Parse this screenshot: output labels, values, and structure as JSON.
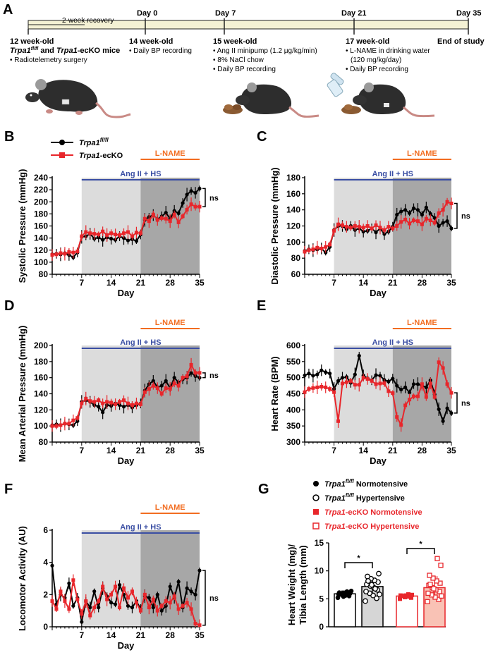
{
  "timeline": {
    "panel_label": "A",
    "recovery_label": "2-week recovery",
    "day_ticks": [
      "Day 0",
      "Day 7",
      "Day 21",
      "Day 35"
    ],
    "stages": [
      {
        "title": "12 week-old",
        "line2": "Trpa1fl/fl and Trpa1-ecKO mice",
        "bullets": [
          "Radiotelemetry surgery"
        ]
      },
      {
        "title": "14 week-old",
        "bullets": [
          "Daily BP recording"
        ]
      },
      {
        "title": "15 week-old",
        "bullets": [
          "Ang II minipump (1.2 μg/kg/min)",
          "8% NaCl chow",
          "Daily BP recording"
        ]
      },
      {
        "title": "17 week-old",
        "bullets": [
          "L-NAME in drinking water",
          "(120 mg/kg/day)",
          "Daily BP recording"
        ]
      },
      {
        "title": "End of study",
        "bullets": []
      }
    ],
    "colors": {
      "bar": "#f4f1d4",
      "mouse": "#2d2d2d",
      "tail": "#c98a85"
    }
  },
  "legend": {
    "flfl": "Trpa1fl/fl",
    "ecko": "Trpa1-ecKO"
  },
  "colors": {
    "flfl": "#000000",
    "ecko": "#e8262b",
    "angii": "#3a4ea3",
    "lname": "#f26d21",
    "bg_light": "#dcdcdc",
    "bg_dark": "#a7a7a7"
  },
  "treatments": {
    "angii": "Ang II + HS",
    "lname": "L-NAME",
    "ns": "ns",
    "star": "*"
  },
  "chart_data": [
    {
      "id": "B",
      "panel_label": "B",
      "type": "line",
      "ylabel": "Systolic Pressure (mmHg)",
      "xlabel": "Day",
      "ylim": [
        80,
        240
      ],
      "yticks": [
        80,
        100,
        120,
        140,
        160,
        180,
        200,
        220,
        240
      ],
      "xticks": [
        7,
        14,
        21,
        28,
        35
      ],
      "xlim": [
        0,
        35
      ],
      "series": [
        {
          "name": "Trpa1fl/fl",
          "x": [
            0,
            1,
            2,
            3,
            4,
            5,
            6,
            7,
            8,
            9,
            10,
            11,
            12,
            13,
            14,
            15,
            16,
            17,
            18,
            19,
            20,
            21,
            22,
            23,
            24,
            25,
            26,
            27,
            28,
            29,
            30,
            31,
            32,
            33,
            34,
            35
          ],
          "y": [
            113,
            114,
            113,
            115,
            112,
            108,
            116,
            142,
            143,
            147,
            139,
            141,
            137,
            141,
            139,
            137,
            143,
            140,
            136,
            138,
            135,
            146,
            170,
            175,
            178,
            171,
            176,
            182,
            172,
            185,
            181,
            198,
            212,
            218,
            215,
            222
          ]
        },
        {
          "name": "Trpa1-ecKO",
          "x": [
            0,
            1,
            2,
            3,
            4,
            5,
            6,
            7,
            8,
            9,
            10,
            11,
            12,
            13,
            14,
            15,
            16,
            17,
            18,
            19,
            20,
            21,
            22,
            23,
            24,
            25,
            26,
            27,
            28,
            29,
            30,
            31,
            32,
            33,
            34,
            35
          ],
          "y": [
            112,
            113,
            115,
            114,
            117,
            116,
            118,
            143,
            150,
            148,
            147,
            146,
            151,
            145,
            148,
            146,
            145,
            148,
            150,
            143,
            149,
            148,
            172,
            168,
            179,
            170,
            173,
            172,
            168,
            179,
            166,
            176,
            187,
            196,
            192,
            192
          ]
        }
      ]
    },
    {
      "id": "C",
      "panel_label": "C",
      "type": "line",
      "ylabel": "Diastolic Pressure (mmHg)",
      "xlabel": "Day",
      "ylim": [
        60,
        180
      ],
      "yticks": [
        60,
        80,
        100,
        120,
        140,
        160,
        180
      ],
      "xticks": [
        7,
        14,
        21,
        28,
        35
      ],
      "xlim": [
        0,
        35
      ],
      "series": [
        {
          "name": "Trpa1fl/fl",
          "x": [
            0,
            1,
            2,
            3,
            4,
            5,
            6,
            7,
            8,
            9,
            10,
            11,
            12,
            13,
            14,
            15,
            16,
            17,
            18,
            19,
            20,
            21,
            22,
            23,
            24,
            25,
            26,
            27,
            28,
            29,
            30,
            31,
            32,
            33,
            34,
            35
          ],
          "y": [
            89,
            91,
            90,
            91,
            92,
            87,
            94,
            115,
            120,
            120,
            116,
            120,
            115,
            117,
            113,
            114,
            117,
            112,
            117,
            110,
            113,
            119,
            134,
            138,
            140,
            136,
            142,
            140,
            134,
            143,
            135,
            130,
            120,
            124,
            126,
            117
          ]
        },
        {
          "name": "Trpa1-ecKO",
          "x": [
            0,
            1,
            2,
            3,
            4,
            5,
            6,
            7,
            8,
            9,
            10,
            11,
            12,
            13,
            14,
            15,
            16,
            17,
            18,
            19,
            20,
            21,
            22,
            23,
            24,
            25,
            26,
            27,
            28,
            29,
            30,
            31,
            32,
            33,
            34,
            35
          ],
          "y": [
            88,
            90,
            91,
            93,
            92,
            94,
            97,
            114,
            122,
            121,
            119,
            118,
            120,
            119,
            118,
            120,
            117,
            121,
            118,
            115,
            119,
            117,
            120,
            125,
            128,
            123,
            127,
            126,
            122,
            129,
            127,
            124,
            136,
            140,
            150,
            148
          ]
        }
      ]
    },
    {
      "id": "D",
      "panel_label": "D",
      "type": "line",
      "ylabel": "Mean Arterial Pressure (mmHg)",
      "xlabel": "Day",
      "ylim": [
        80,
        200
      ],
      "yticks": [
        80,
        100,
        120,
        140,
        160,
        180,
        200
      ],
      "xticks": [
        7,
        14,
        21,
        28,
        35
      ],
      "xlim": [
        0,
        35
      ],
      "series": [
        {
          "name": "Trpa1fl/fl",
          "x": [
            0,
            1,
            2,
            3,
            4,
            5,
            6,
            7,
            8,
            9,
            10,
            11,
            12,
            13,
            14,
            15,
            16,
            17,
            18,
            19,
            20,
            21,
            22,
            23,
            24,
            25,
            26,
            27,
            28,
            29,
            30,
            31,
            32,
            33,
            34,
            35
          ],
          "y": [
            101,
            102,
            101,
            103,
            102,
            101,
            106,
            130,
            132,
            130,
            126,
            124,
            117,
            126,
            125,
            128,
            126,
            124,
            126,
            123,
            126,
            128,
            144,
            152,
            156,
            148,
            150,
            156,
            147,
            160,
            154,
            158,
            160,
            166,
            162,
            160
          ]
        },
        {
          "name": "Trpa1-ecKO",
          "x": [
            0,
            1,
            2,
            3,
            4,
            5,
            6,
            7,
            8,
            9,
            10,
            11,
            12,
            13,
            14,
            15,
            16,
            17,
            18,
            19,
            20,
            21,
            22,
            23,
            24,
            25,
            26,
            27,
            28,
            29,
            30,
            31,
            32,
            33,
            34,
            35
          ],
          "y": [
            100,
            100,
            101,
            103,
            103,
            107,
            110,
            128,
            134,
            131,
            130,
            132,
            128,
            130,
            129,
            127,
            130,
            132,
            128,
            126,
            128,
            127,
            142,
            146,
            150,
            147,
            140,
            147,
            146,
            153,
            150,
            160,
            162,
            176,
            166,
            166
          ]
        }
      ]
    },
    {
      "id": "E",
      "panel_label": "E",
      "type": "line",
      "ylabel": "Heart Rate (BPM)",
      "xlabel": "Day",
      "ylim": [
        300,
        600
      ],
      "yticks": [
        300,
        350,
        400,
        450,
        500,
        550,
        600
      ],
      "xticks": [
        7,
        14,
        21,
        28,
        35
      ],
      "xlim": [
        0,
        35
      ],
      "series": [
        {
          "name": "Trpa1fl/fl",
          "x": [
            0,
            1,
            2,
            3,
            4,
            5,
            6,
            7,
            8,
            9,
            10,
            11,
            12,
            13,
            14,
            15,
            16,
            17,
            18,
            19,
            20,
            21,
            22,
            23,
            24,
            25,
            26,
            27,
            28,
            29,
            30,
            31,
            32,
            33,
            34,
            35
          ],
          "y": [
            507,
            513,
            506,
            510,
            523,
            517,
            513,
            465,
            490,
            500,
            502,
            484,
            510,
            568,
            507,
            498,
            492,
            508,
            506,
            493,
            488,
            497,
            475,
            463,
            470,
            454,
            480,
            480,
            475,
            470,
            492,
            448,
            402,
            365,
            405,
            390
          ]
        },
        {
          "name": "Trpa1-ecKO",
          "x": [
            0,
            1,
            2,
            3,
            4,
            5,
            6,
            7,
            8,
            9,
            10,
            11,
            12,
            13,
            14,
            15,
            16,
            17,
            18,
            19,
            20,
            21,
            22,
            23,
            24,
            25,
            26,
            27,
            28,
            29,
            30,
            31,
            32,
            33,
            34,
            35
          ],
          "y": [
            455,
            465,
            468,
            470,
            472,
            470,
            465,
            455,
            365,
            482,
            486,
            490,
            478,
            478,
            500,
            496,
            490,
            480,
            482,
            483,
            458,
            452,
            378,
            353,
            414,
            432,
            442,
            442,
            480,
            440,
            482,
            440,
            548,
            530,
            480,
            453
          ]
        }
      ]
    },
    {
      "id": "F",
      "panel_label": "F",
      "type": "line",
      "ylabel": "Locomotor Activity (AU)",
      "xlabel": "Day",
      "ylim": [
        0,
        6
      ],
      "yticks": [
        0,
        2,
        4,
        6
      ],
      "xticks": [
        7,
        14,
        21,
        28,
        35
      ],
      "xlim": [
        0,
        35
      ],
      "series": [
        {
          "name": "Trpa1fl/fl",
          "x": [
            0,
            1,
            2,
            3,
            4,
            5,
            6,
            7,
            8,
            9,
            10,
            11,
            12,
            13,
            14,
            15,
            16,
            17,
            18,
            19,
            20,
            21,
            22,
            23,
            24,
            25,
            26,
            27,
            28,
            29,
            30,
            31,
            32,
            33,
            34,
            35
          ],
          "y": [
            3.8,
            1.4,
            2.0,
            1.8,
            2.7,
            1.3,
            1.8,
            0.3,
            1.6,
            1.2,
            2.2,
            1.2,
            2.4,
            1.9,
            1.5,
            1.4,
            2.6,
            2.0,
            1.3,
            1.2,
            1.6,
            1.1,
            1.9,
            1.8,
            1.2,
            2.0,
            1.0,
            1.3,
            2.5,
            1.8,
            2.8,
            1.2,
            2.4,
            2.2,
            2.0,
            3.5
          ]
        },
        {
          "name": "Trpa1-ecKO",
          "x": [
            0,
            1,
            2,
            3,
            4,
            5,
            6,
            7,
            8,
            9,
            10,
            11,
            12,
            13,
            14,
            15,
            16,
            17,
            18,
            19,
            20,
            21,
            22,
            23,
            24,
            25,
            26,
            27,
            28,
            29,
            30,
            31,
            32,
            33,
            34,
            35
          ],
          "y": [
            1.6,
            1.1,
            2.2,
            1.6,
            1.1,
            2.9,
            1.7,
            0.8,
            1.6,
            0.7,
            1.2,
            1.6,
            2.5,
            1.7,
            2.0,
            2.5,
            1.2,
            2.4,
            1.8,
            2.2,
            1.5,
            1.0,
            2.0,
            1.2,
            1.7,
            1.0,
            1.3,
            1.6,
            1.5,
            1.9,
            1.1,
            1.3,
            1.5,
            1.1,
            0.2,
            0.1
          ]
        }
      ]
    },
    {
      "id": "G",
      "panel_label": "G",
      "type": "bar",
      "ylabel_line1": "Heart Weight (mg)/",
      "ylabel_line2": "Tibia Length (mm)",
      "ylim": [
        0,
        15
      ],
      "yticks": [
        0,
        5,
        10,
        15
      ],
      "legend": [
        {
          "label": "Trpa1fl/fl Normotensive",
          "marker": "filled-circle"
        },
        {
          "label": "Trpa1fl/fl Hypertensive",
          "marker": "open-circle"
        },
        {
          "label": "Trpa1-ecKO Normotensive",
          "marker": "filled-square"
        },
        {
          "label": "Trpa1-ecKO Hypertensive",
          "marker": "open-square"
        }
      ],
      "bars": [
        {
          "group": "Trpa1fl/fl Normotensive",
          "mean": 5.9,
          "sd": 0.5,
          "points": [
            5.2,
            5.5,
            5.6,
            5.7,
            5.8,
            5.9,
            6.0,
            6.0,
            6.1,
            6.2,
            6.3,
            5.4,
            5.8,
            6.4
          ]
        },
        {
          "group": "Trpa1fl/fl Hypertensive",
          "mean": 7.2,
          "sd": 1.5,
          "points": [
            4.6,
            5.1,
            5.6,
            6.0,
            6.3,
            6.6,
            7.0,
            7.3,
            7.6,
            8.0,
            8.3,
            8.6,
            9.0,
            9.5,
            6.8,
            7.5,
            8.2,
            5.8
          ]
        },
        {
          "group": "Trpa1-ecKO Normotensive",
          "mean": 5.5,
          "sd": 0.4,
          "points": [
            5.0,
            5.2,
            5.4,
            5.5,
            5.6,
            5.7,
            5.8,
            5.3
          ]
        },
        {
          "group": "Trpa1-ecKO Hypertensive",
          "mean": 7.0,
          "sd": 1.9,
          "points": [
            4.5,
            4.9,
            5.3,
            5.7,
            6.0,
            6.3,
            6.6,
            7.0,
            7.4,
            7.8,
            8.2,
            8.7,
            9.2,
            11.0,
            12.2,
            6.8,
            7.6,
            5.5
          ]
        }
      ]
    }
  ]
}
